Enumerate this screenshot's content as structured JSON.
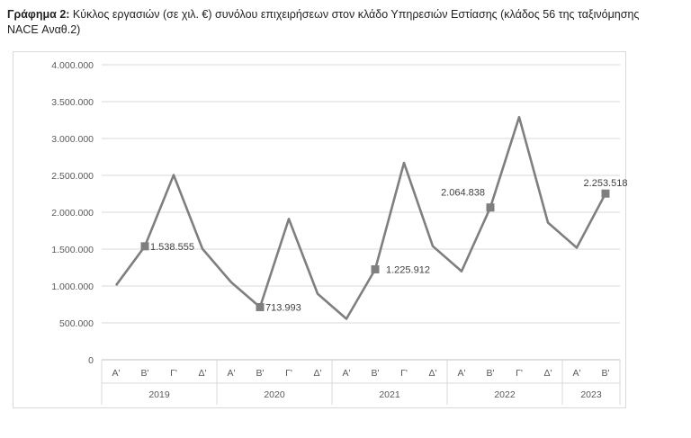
{
  "title": {
    "lead": "Γράφημα 2:",
    "text": " Κύκλος εργασιών (σε χιλ. €) συνόλου επιχειρήσεων στον κλάδο Υπηρεσιών Εστίασης (κλάδος 56 της ταξινόμησης NACE Αναθ.2)"
  },
  "chart_data": {
    "type": "line",
    "title": "Γράφημα 2: Κύκλος εργασιών (σε χιλ. €) συνόλου επιχειρήσεων στον κλάδο Υπηρεσιών Εστίασης (κλάδος 56 της ταξινόμησης NACE Αναθ.2)",
    "ylim": [
      0,
      4000000
    ],
    "yticks": [
      0,
      500000,
      1000000,
      1500000,
      2000000,
      2500000,
      3000000,
      3500000,
      4000000
    ],
    "ytick_labels": [
      "0",
      "500.000",
      "1.000.000",
      "1.500.000",
      "2.000.000",
      "2.500.000",
      "3.000.000",
      "3.500.000",
      "4.000.000"
    ],
    "grid": true,
    "line_color": "#7f7f7f",
    "years": [
      {
        "label": "2019",
        "quarters": [
          "Α'",
          "Β'",
          "Γ'",
          "Δ'"
        ]
      },
      {
        "label": "2020",
        "quarters": [
          "Α'",
          "Β'",
          "Γ'",
          "Δ'"
        ]
      },
      {
        "label": "2021",
        "quarters": [
          "Α'",
          "Β'",
          "Γ'",
          "Δ'"
        ]
      },
      {
        "label": "2022",
        "quarters": [
          "Α'",
          "Β'",
          "Γ'",
          "Δ'"
        ]
      },
      {
        "label": "2023",
        "quarters": [
          "Α'",
          "Β'"
        ]
      }
    ],
    "values": [
      1010000,
      1538555,
      2505000,
      1505000,
      1050000,
      713993,
      1910000,
      895000,
      555000,
      1225912,
      2670000,
      1540000,
      1200000,
      2064838,
      3290000,
      1860000,
      1520000,
      2253518
    ],
    "markers": [
      1,
      5,
      9,
      13,
      17
    ],
    "data_labels": [
      {
        "index": 1,
        "text": "1.538.555",
        "pos": "right"
      },
      {
        "index": 5,
        "text": "713.993",
        "pos": "right"
      },
      {
        "index": 9,
        "text": "1.225.912",
        "pos": "right"
      },
      {
        "index": 13,
        "text": "2.064.838",
        "pos": "above-left"
      },
      {
        "index": 17,
        "text": "2.253.518",
        "pos": "above"
      }
    ]
  }
}
